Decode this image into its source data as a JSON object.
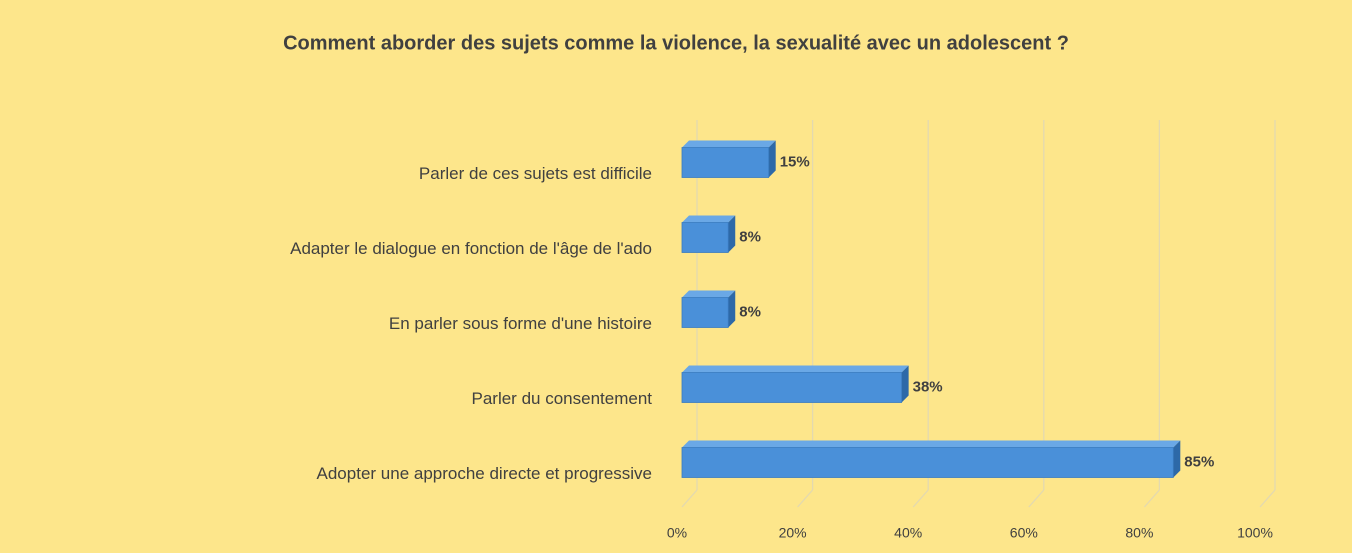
{
  "chart_data": {
    "type": "bar",
    "orientation": "horizontal",
    "title": "Comment aborder des sujets comme la violence, la sexualité avec un adolescent ?",
    "categories": [
      "Parler de ces sujets est difficile",
      "Adapter le dialogue en fonction de l'âge de l'ado",
      "En parler sous forme d'une histoire",
      "Parler du consentement",
      "Adopter une approche directe et progressive"
    ],
    "values": [
      15,
      8,
      8,
      38,
      85
    ],
    "value_labels": [
      "15%",
      "8%",
      "8%",
      "38%",
      "85%"
    ],
    "color": "#4a90d9",
    "xlim": [
      0,
      100
    ],
    "xticks": [
      {
        "value": 0,
        "label": "0%"
      },
      {
        "value": 20,
        "label": "20%"
      },
      {
        "value": 40,
        "label": "40%"
      },
      {
        "value": 60,
        "label": "60%"
      },
      {
        "value": 80,
        "label": "80%"
      },
      {
        "value": 100,
        "label": "100%"
      }
    ],
    "grid": true
  }
}
